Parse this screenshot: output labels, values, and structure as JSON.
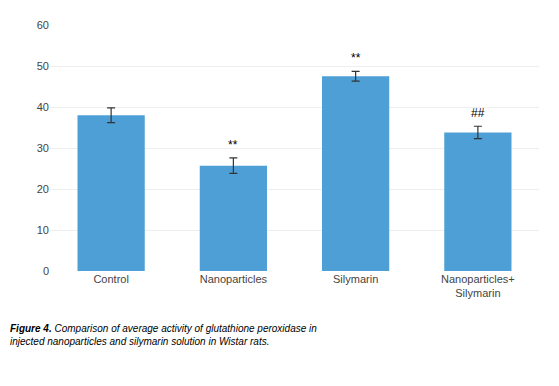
{
  "chart_data": {
    "type": "bar",
    "categories": [
      "Control",
      "Nanoparticles",
      "Silymarin",
      "Nanoparticles+\nSilymarin"
    ],
    "values": [
      38.0,
      25.7,
      47.5,
      33.8
    ],
    "errors": [
      1.8,
      1.9,
      1.2,
      1.5
    ],
    "color": "#4d9fd6",
    "annotations": [
      null,
      "**",
      "**",
      "##"
    ],
    "caption": [
      "Figure 4.",
      " Comparison of average activity of glutathione peroxidase in\ninjected nanoparticles and silymarin solution in Wistar rats."
    ],
    "ylim": [
      0,
      60
    ],
    "yticks": [
      0,
      10,
      20,
      30,
      40,
      50,
      60
    ],
    "grid": true
  }
}
